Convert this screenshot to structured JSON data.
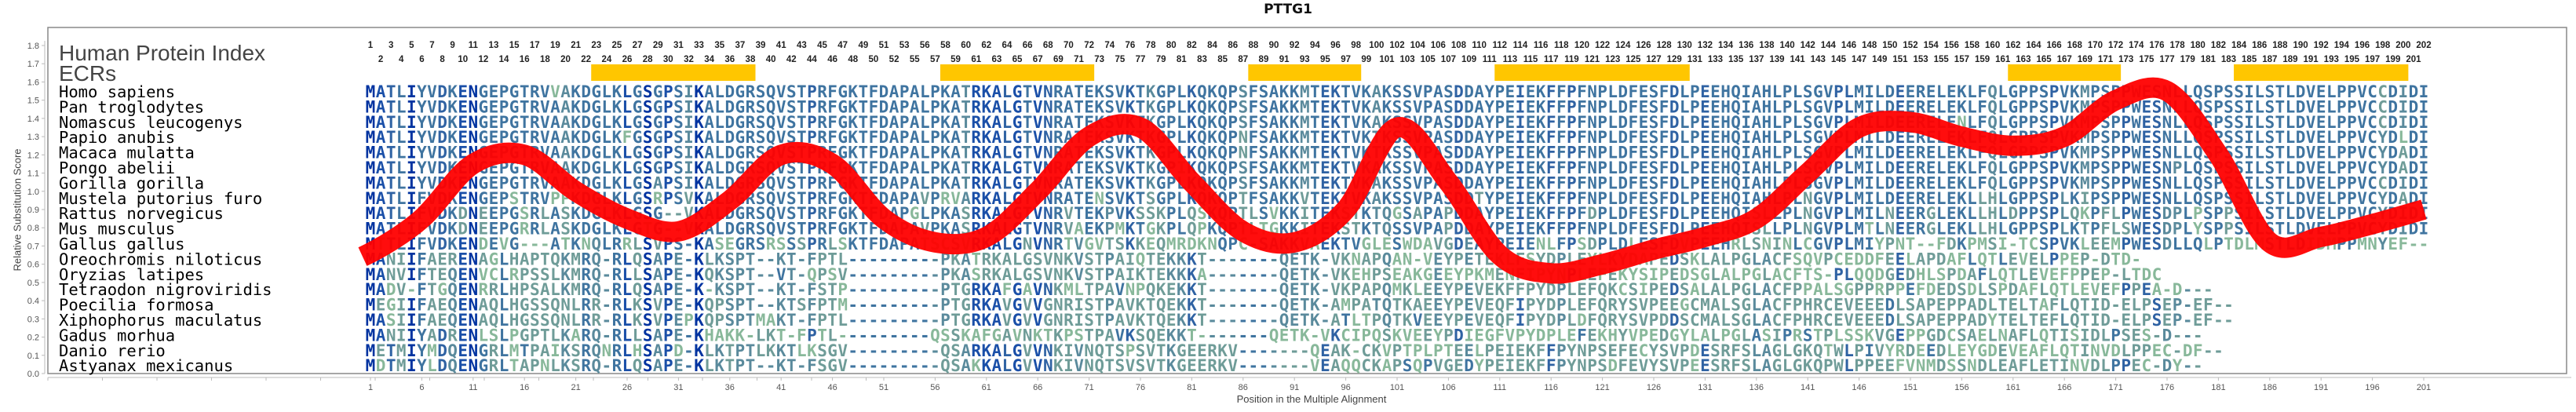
{
  "chart_data": {
    "type": "line",
    "title": "PTTG1",
    "xlabel": "Position in the Multiple Alignment",
    "ylabel": "Relative Substitution Score",
    "ylim": [
      0.0,
      1.8
    ],
    "yticks": [
      "0.0",
      "0.1",
      "0.2",
      "0.3",
      "0.4",
      "0.5",
      "0.6",
      "0.7",
      "0.8",
      "0.9",
      "1.0",
      "1.1",
      "1.2",
      "1.3",
      "1.4",
      "1.5",
      "1.6",
      "1.7",
      "1.8"
    ],
    "xlim": [
      1,
      201
    ],
    "xticks": [
      "1",
      "6",
      "11",
      "16",
      "21",
      "26",
      "31",
      "36",
      "41",
      "46",
      "51",
      "56",
      "61",
      "66",
      "71",
      "76",
      "81",
      "86",
      "91",
      "96",
      "101",
      "106",
      "111",
      "116",
      "121",
      "126",
      "131",
      "136",
      "141",
      "146",
      "151",
      "156",
      "161",
      "166",
      "171",
      "176",
      "181",
      "186",
      "191",
      "196",
      "201"
    ],
    "grid": false,
    "labels": {
      "human_protein_index": "Human Protein Index",
      "ecrs": "ECRs"
    },
    "human_protein_index_row1": [
      "1",
      "3",
      "5",
      "7",
      "9",
      "11",
      "13",
      "15",
      "17",
      "19",
      "21",
      "23",
      "25",
      "27",
      "29",
      "31",
      "33",
      "35",
      "37",
      "39",
      "41",
      "43",
      "45",
      "47",
      "49",
      "51",
      "53",
      "56",
      "58",
      "60",
      "62",
      "64",
      "66",
      "68",
      "70",
      "72",
      "74",
      "76",
      "78",
      "80",
      "82",
      "84",
      "86",
      "88",
      "90",
      "92",
      "94",
      "96",
      "98",
      "100",
      "102",
      "104",
      "106",
      "108",
      "110",
      "112",
      "114",
      "116",
      "118",
      "120",
      "122",
      "124",
      "126",
      "128",
      "130",
      "132",
      "134",
      "136",
      "138",
      "140",
      "142",
      "144",
      "146",
      "148",
      "150",
      "152",
      "154",
      "156",
      "158",
      "160",
      "162",
      "164",
      "166",
      "168",
      "170",
      "172",
      "174",
      "176",
      "178",
      "180",
      "182",
      "184",
      "186",
      "188",
      "190",
      "192",
      "194",
      "196",
      "198",
      "200",
      "202"
    ],
    "human_protein_index_row2": [
      "2",
      "4",
      "6",
      "8",
      "10",
      "12",
      "14",
      "16",
      "18",
      "20",
      "22",
      "24",
      "26",
      "28",
      "30",
      "32",
      "34",
      "36",
      "38",
      "40",
      "42",
      "44",
      "46",
      "48",
      "50",
      "52",
      "55",
      "57",
      "59",
      "61",
      "63",
      "65",
      "67",
      "69",
      "71",
      "73",
      "75",
      "77",
      "79",
      "81",
      "83",
      "85",
      "87",
      "89",
      "91",
      "93",
      "95",
      "97",
      "99",
      "101",
      "103",
      "105",
      "107",
      "109",
      "111",
      "113",
      "115",
      "117",
      "119",
      "121",
      "123",
      "125",
      "127",
      "129",
      "131",
      "133",
      "135",
      "137",
      "139",
      "141",
      "143",
      "145",
      "147",
      "149",
      "151",
      "153",
      "155",
      "157",
      "159",
      "161",
      "163",
      "165",
      "167",
      "169",
      "171",
      "173",
      "175",
      "177",
      "179",
      "181",
      "183",
      "185",
      "187",
      "189",
      "191",
      "193",
      "195",
      "197",
      "199",
      "201"
    ],
    "ecr_regions": [
      {
        "start": 23,
        "end": 38
      },
      {
        "start": 57,
        "end": 71
      },
      {
        "start": 87,
        "end": 97
      },
      {
        "start": 111,
        "end": 129
      },
      {
        "start": 161,
        "end": 171
      },
      {
        "start": 183,
        "end": 199
      }
    ],
    "ecr_color": "#ffc600",
    "line_color": "#ff0000",
    "series": [
      {
        "name": "Relative Substitution Score",
        "x": [
          1,
          6,
          11,
          16,
          21,
          26,
          31,
          36,
          41,
          46,
          51,
          56,
          61,
          66,
          71,
          76,
          81,
          86,
          91,
          96,
          101,
          106,
          111,
          116,
          121,
          126,
          131,
          136,
          141,
          146,
          151,
          156,
          161,
          166,
          171,
          176,
          181,
          186,
          191,
          196,
          201
        ],
        "values": [
          0.65,
          0.85,
          1.15,
          1.2,
          1.0,
          0.85,
          0.78,
          0.95,
          1.2,
          1.15,
          0.85,
          0.72,
          0.75,
          1.0,
          1.3,
          1.35,
          1.05,
          0.78,
          0.72,
          0.9,
          1.35,
          1.05,
          0.65,
          0.55,
          0.6,
          0.68,
          0.75,
          0.85,
          1.1,
          1.35,
          1.38,
          1.3,
          1.25,
          1.3,
          1.5,
          1.55,
          1.2,
          0.72,
          0.75,
          0.82,
          0.9
        ]
      }
    ],
    "alignment": {
      "species": [
        "Homo sapiens",
        "Pan troglodytes",
        "Nomascus leucogenys",
        "Papio anubis",
        "Macaca mulatta",
        "Pongo abelii",
        "Gorilla gorilla",
        "Mustela putorius furo",
        "Rattus norvegicus",
        "Mus musculus",
        "Gallus gallus",
        "Oreochromis niloticus",
        "Oryzias latipes",
        "Tetraodon nigroviridis",
        "Poecilia formosa",
        "Xiphophorus maculatus",
        "Gadus morhua",
        "Danio rerio",
        "Astyanax mexicanus"
      ],
      "sequences": [
        "MATLIYVDKENGEPGTRVVAKDGLKLGSGPSIKALDGRSQVSTPRFGKTFDAPALPKATRKALGTVNRATEKSVKTKGPLKQKQPSFSAKKMTEKTVKAKSSVPASDDAYPEIEKFFPFNPLDFESFDLPEEHQIAHLPLSGVPLMILDEERELEKLFQLGPPSPVKMPSPPWESNLLQSPSSILSTLDVELPPVCCDIDI",
        "MATLIYVDKENGEPGTRVAAKDGLKLGSGPSIKALDGRSQVSTPRFGKTFDAPALPKATRKALGTVNRATEKSVKTKGPLKQKQPSFSAKKMTEKTVKAKSSVPASDDAYPEIEKFFPFNPLDFESFDLPEEHQIAHLPLSGVPLMILDEERELEKLFQLGPPSPVKMPSPPWESNLLQSPSSILSTLDVELPPVCCDIDI",
        "MATLIYVDKENGEPGTRVAAKDGLKLGSGPSIKALDGRSQVSTPRFGKTFDAPALPKATRKALGTVNRATEKSVKTKGPLKQKQPSFSAKKMTEKTVKAKSSVPASDDAYPEIEKFFPFNPLDFESFDLPEEHQIAHLPLSGVPLMILDEERELENLFQLGPPSPVKMPSPPWESNLLQSPSSILSTLDVELPPVCCDIDI",
        "MATLIYVDKENGEPGTRVAAKDGLKFGSGPSIKALDGRSQVSTPRFGKTFDAPALPKATRKALGTVNRATEKSVKTKGPLKQKQPNFSAKKMTEKTVKTKSSVPASDDAYPEIEKFFPFNPLDFESFDLPEEHQIAHLPLSGVPLMILDEERELEKLFQLGPPSPVKMPSPPWESNLLQSPSSILSTLDVELPPVCYDLDI",
        "MATLIYVDKENGEPGTRVAAKDGLKLGSGPSIKALDGRSQVSTPRFGKTFDAPALPKATRKALGTVNRATEKSVKTKGPLKQKQPNFSAKKMTEKTVKTKSSVPASDDAYPEIEKFFPFNPLDFESFDLPEEHQIAHLPLSGVPLMILDEERELEKLFQLGPPSPVKMPSPPWESNLLQSPSSILSTLDVELPPVCYDADI",
        "MATLIYVDKENGEPGTRVAAKDGLKLGSGPSIKALDGRSQVSTPRFGKTFDAPALPKATRKALGTVNRATEKSVKTKGPIKQKQPSFSAKKMTEKTVKAKSSVPASDDAYPEIEKFFPFNPLDFESFDLPEEHQIAHLPLSGVPLMILDEERELEKLFQLGPPSPVKMPSPPWESNPLQSPSSILSTLDVELPPVCYDADI",
        "MATLIYVDKENGEPGTRVAAKDGLKLGSAPSIKALDGRSQVSTPRFGKTFDAPALPKATRKALGTVNRATEKSVKTKGPLKQKQPSFSAKKMTEKTVKAKSSVPASDDAYPEIEKFFPFNPLDFESFDLPEEHQIAHLPLSGVPLMILDEERELEKLFQLGPPSPVKMPSPPWESNLLQSPSSILSTLDVELPPVCCDIDI",
        "MATLIFVDKENGEPSTRVPPKDGLKLGSRPSVKALDGRSQVSTPRFGKTFDAPAVPRVARKALGTVNRATENSVKTSGPLKQKQPTFSAKKVTEKTVKAKSSVPASDDTYPEIEKFFPFNPLDFESFDLPEEHQIAHLPLNGVPLMILDEERELEKLLHLGPPSPLKIPSPPWESNLLQSPSSILSTLDVELPPVCYDADI",
        "MATLIFVDKDNEEPGSRLASKDGLKLGSG--VKALDGRSQVSTPRFGKTFDAPGLPKASRKALGTVNRVTEKPVKSSKPLQSKQPTLSVKKITEKSTKTQGSAPAPDDAYPEIEKFFPFDPLDFESFDLPEEHQISLLPLNGVPLMILNEERGLEKLLHLDPPSPLQKPFLPWESDPLPSPPSILSTLDVELPPVCYDIDI",
        "MATLIFVDKDNEEPGRRLASKDGLKLGTG--VKALDGRSQVSTPRFGKTFDAPAVPKASRKALGTVNRVAEKPMKTGKPLQPKQPTLTGKKITEKSTKTQSSVPAPDDAYPEIEKFFPFNPLDFESFDLPEEHQISLLPLNGVPLMTLNEERGLEKLLHLGPPSPLKTPFLSWESDPLYSPPSILSTLDVELPPVCYDIDI",
        "MTTLIFVDKENDEVG---ATKNQLRRLSVPS-KASEGRSRSSSPRLSKTFDAPATSCSVRKALGNVNRTVGVTSKKEQMRDKNQPC-SAKKVAEKTVGLESWDAVGDEAYPEIENLFPSDPLDLESFDVPEEHRLSNINLCGVPLMIYPNT--FDKPMSI-TCSPVKLEEMPWESDLLQLPTDLMSTLDIDMPPMNYEF--",
        "MANIIFAERENAGLHAPTQKMRQ-RLQSAPE-KLKSPT--KT-FPTL---------PKATRKALGSVNKVSTPAIQTEKKKT-------QETK-VKNAPQAN-VEYPETEKLFSYDPLEYLKYDAPEDSKLALPGLACFSQVPCEDDFEELAPDAFLQTLEVELPPEP-DTD-",
        "MANVIFTEQENVCLRPSSLKMRQ-RLLSAPE-KQKSPT--VT-QPSV---------PKASRKALGSVNKVSTPAIKTEKKKA-------QETK-VKEHPSEAKGEEYPKMENFIPYNPLEFEKYSIPEDSGLALPGLACFTS-PLQQDGEDHLSPDAFLQTLEVEFPPEP-LTDC",
        "MADV-FTGQENRRLHPSALKMRQ-RLQSAPE-K-KSPT--KT-FSTP---------PTGRKAFGAVNKMLTPAVNPQKEKKT-------QETK-VKPAPQMKLEEYPEVEKFFPYDPLEFQKCSIPEDSALALPGLACFPPALSGPPRPPEFDEDSDLSPDAFLQTLEVEFPPEA-D---",
        "MEGIIFAEQENAQLHGSSQNLRR-RLKSVPE-KQPSPT--KTSFPTM---------PTGRKAVGVVGNRISTPAVKTQEKKT-------QETK-AMPATQTKAEEYPEVEQFIPYDPLEFQRYSVPEEGCMALSGLACFPHRCEVEEEDLSAPEPPADLTELTAFLQTID-ELPSEP-EF--",
        "MASIIFAEQENAQLHGSSQNLRR-RLKSVPEPKQPSPTMAKT-FPTL---------PTGRKAVGVVGNRISTPAVKTQEKKT-------QETK-ATLTPQTKVEEYPEVEQFIPYDPLDFQRYSVPDDSCMALSGLACFPHRCEVEEEDLSAPEPPADYTELTEFLQTID-ELPSEP-EF--",
        "MANIIYADRENLSLPGPTLKARQ-RLLSAPE-KHAKK-LKT-FPTL---------QSSKAFGAVNKTKPSTPAVKSQEKKT-------QETK-VKCIPQSKVEEYPDIEGFVPYDPLEFEKHYVPEDGYLALPGLASIPRSTPLSSKVGEPPGDCSAELNAFLQTISIDLPSES-D---",
        "METMIYMDQENGRLMTPAIKSRQNRLHSAPD-KLKTPTLKKTLKSGV---------QSARKALGVVNKIVNQTSPSVTKGEERKV-------QEAK-CKVPTPLPTEELPEIEKFFPYNPSEFECYSVPDESRFSLAGLGKQTWLPIVYRDEEDLEYGDEVEAFLQTINVDLPPEC-DF--",
        "MDTMIYLDQENGRLTAPNLKSRQ-RLQSAPE-KLKTPT--KT-FSGV---------QSAKKALGVVNKIVNQTSVSVTKGEERKV-------VEAQQCKAPSQPVGEDYPEIEKFFPYNPSDFEVYSVPEESRFSLAGLGKQPWLPPEEFVNMDSSNDLEAFLETINVDLPPEC-DY--"
      ]
    }
  }
}
